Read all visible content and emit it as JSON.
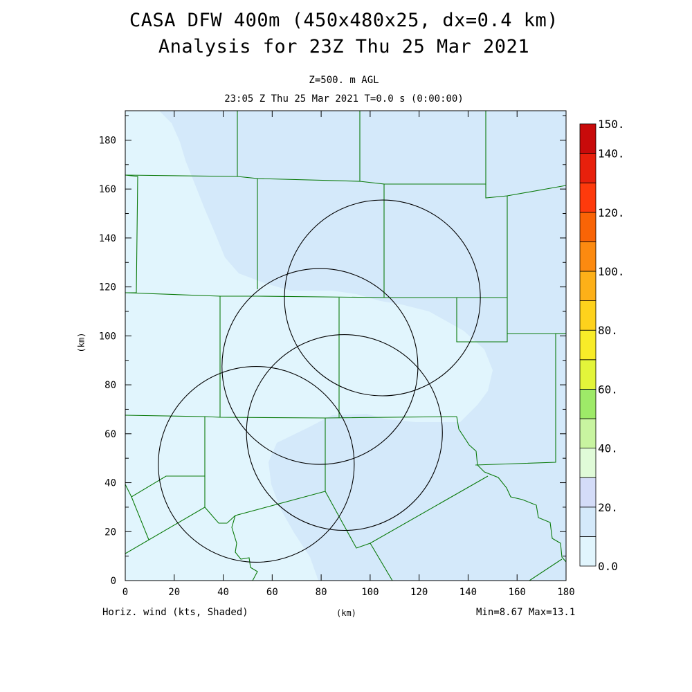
{
  "header": {
    "title_line1": "CASA DFW 400m (450x480x25, dx=0.4 km)",
    "title_line2": "Analysis for 23Z Thu 25 Mar 2021",
    "level_label": "Z=500. m AGL",
    "time_label": "23:05 Z Thu 25 Mar 2021   T=0.0 s (0:00:00)"
  },
  "footer": {
    "field_label": "Horiz. wind (kts, Shaded)",
    "x_unit_label": "(km)",
    "minmax_label": "Min=8.67 Max=13.1"
  },
  "colors": {
    "boundary": "#0a7a0a",
    "radar_ring": "#000000",
    "field_low": "#e1f5fd",
    "field_high": "#d4e9fa"
  },
  "chart_data": {
    "type": "heatmap",
    "title": "CASA DFW 400m (450x480x25, dx=0.4 km)",
    "subtitle": "Analysis for 23Z Thu 25 Mar 2021",
    "xlabel": "(km)",
    "ylabel": "(km)",
    "xlim": [
      0,
      180
    ],
    "ylim": [
      0,
      192
    ],
    "xticks": [
      0,
      20,
      40,
      60,
      80,
      100,
      120,
      140,
      160,
      180
    ],
    "yticks": [
      0,
      20,
      40,
      60,
      80,
      100,
      120,
      140,
      160,
      180
    ],
    "field": "Horiz. wind",
    "units": "kts",
    "min": 8.67,
    "max": 13.1,
    "colorbar": {
      "range": [
        0,
        150
      ],
      "interval": 10,
      "labels": [
        "0.0",
        "20.",
        "40.",
        "60.",
        "80.",
        "100.",
        "120.",
        "140.",
        "150."
      ],
      "colors": [
        "#e1f5fd",
        "#d4e9fa",
        "#d4dcf8",
        "#e0fbd8",
        "#c8f4a0",
        "#9eea68",
        "#e3f53a",
        "#f8ec28",
        "#fed21c",
        "#fdb018",
        "#fc8a10",
        "#f96406",
        "#fe3a0c",
        "#e8200c",
        "#c80a0a",
        "#a80000"
      ]
    },
    "shaded_bins": [
      {
        "range": "0-10 kts",
        "color": "#e1f5fd"
      },
      {
        "range": "10-20 kts",
        "color": "#d4e9fa"
      }
    ],
    "radar_rings": [
      {
        "center_km": [
          53.5,
          47.5
        ],
        "radius_km": 40
      },
      {
        "center_km": [
          79.5,
          87.5
        ],
        "radius_km": 40
      },
      {
        "center_km": [
          89.5,
          60.5
        ],
        "radius_km": 40
      },
      {
        "center_km": [
          105,
          115.5
        ],
        "radius_km": 40
      }
    ]
  }
}
